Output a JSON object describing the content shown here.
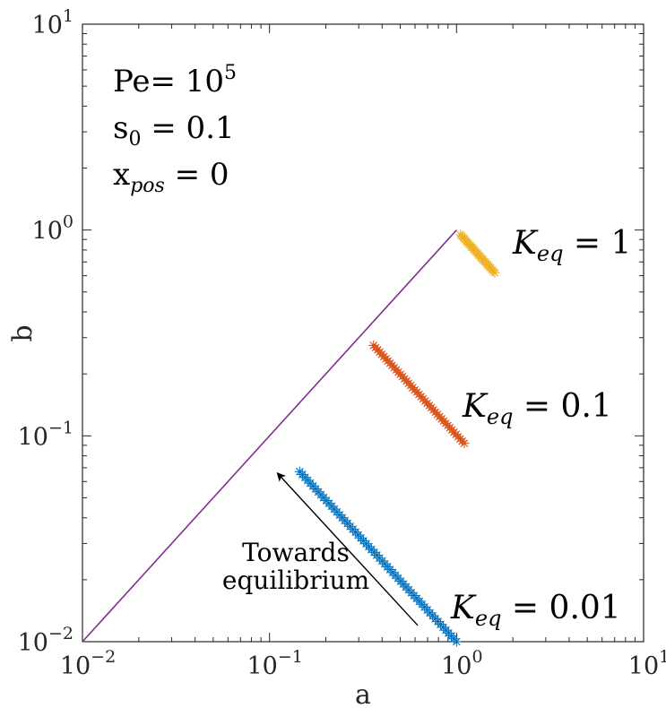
{
  "chart_data": {
    "type": "scatter",
    "xlabel": "a",
    "ylabel": "b",
    "x_scale": "log",
    "y_scale": "log",
    "xlim": [
      0.01,
      10
    ],
    "ylim": [
      0.01,
      10
    ],
    "grid": false,
    "x_ticks": [
      {
        "base": "10",
        "exp": "−2"
      },
      {
        "base": "10",
        "exp": "−1"
      },
      {
        "base": "10",
        "exp": "0"
      },
      {
        "base": "10",
        "exp": "1"
      }
    ],
    "y_ticks": [
      {
        "base": "10",
        "exp": "−2"
      },
      {
        "base": "10",
        "exp": "−1"
      },
      {
        "base": "10",
        "exp": "0"
      },
      {
        "base": "10",
        "exp": "1"
      }
    ],
    "parameters": [
      {
        "base": "Pe= 10",
        "sup": "5",
        "sub": "",
        "rest": ""
      },
      {
        "base": "s",
        "sup": "",
        "sub": "0",
        "rest": " = 0.1"
      },
      {
        "base": "x",
        "sup": "",
        "sub": "pos",
        "rest": " = 0"
      }
    ],
    "reference_line": {
      "x": [
        0.01,
        1
      ],
      "y": [
        0.01,
        1
      ],
      "color": "#7e2f8e"
    },
    "series": [
      {
        "label": {
          "base": "K",
          "sub": "eq",
          "rest": " = 0.01"
        },
        "color": "#0072bd",
        "marker": "asterisk",
        "x_start": 1.0,
        "y_start": 0.01,
        "x_end": 0.145,
        "y_end": 0.067,
        "n_points": 60
      },
      {
        "label": {
          "base": "K",
          "sub": "eq",
          "rest": " = 0.1"
        },
        "color": "#d95319",
        "marker": "asterisk",
        "x_start": 1.1,
        "y_start": 0.092,
        "x_end": 0.36,
        "y_end": 0.275,
        "n_points": 45
      },
      {
        "label": {
          "base": "K",
          "sub": "eq",
          "rest": " = 1"
        },
        "color": "#edb120",
        "marker": "asterisk",
        "x_start": 1.6,
        "y_start": 0.62,
        "x_end": 1.05,
        "y_end": 0.95,
        "n_points": 25
      }
    ],
    "annotation": {
      "text_lines": [
        "Towards",
        "equilibrium"
      ],
      "arrow_from": [
        0.62,
        0.012
      ],
      "arrow_to": [
        0.11,
        0.066
      ]
    }
  }
}
